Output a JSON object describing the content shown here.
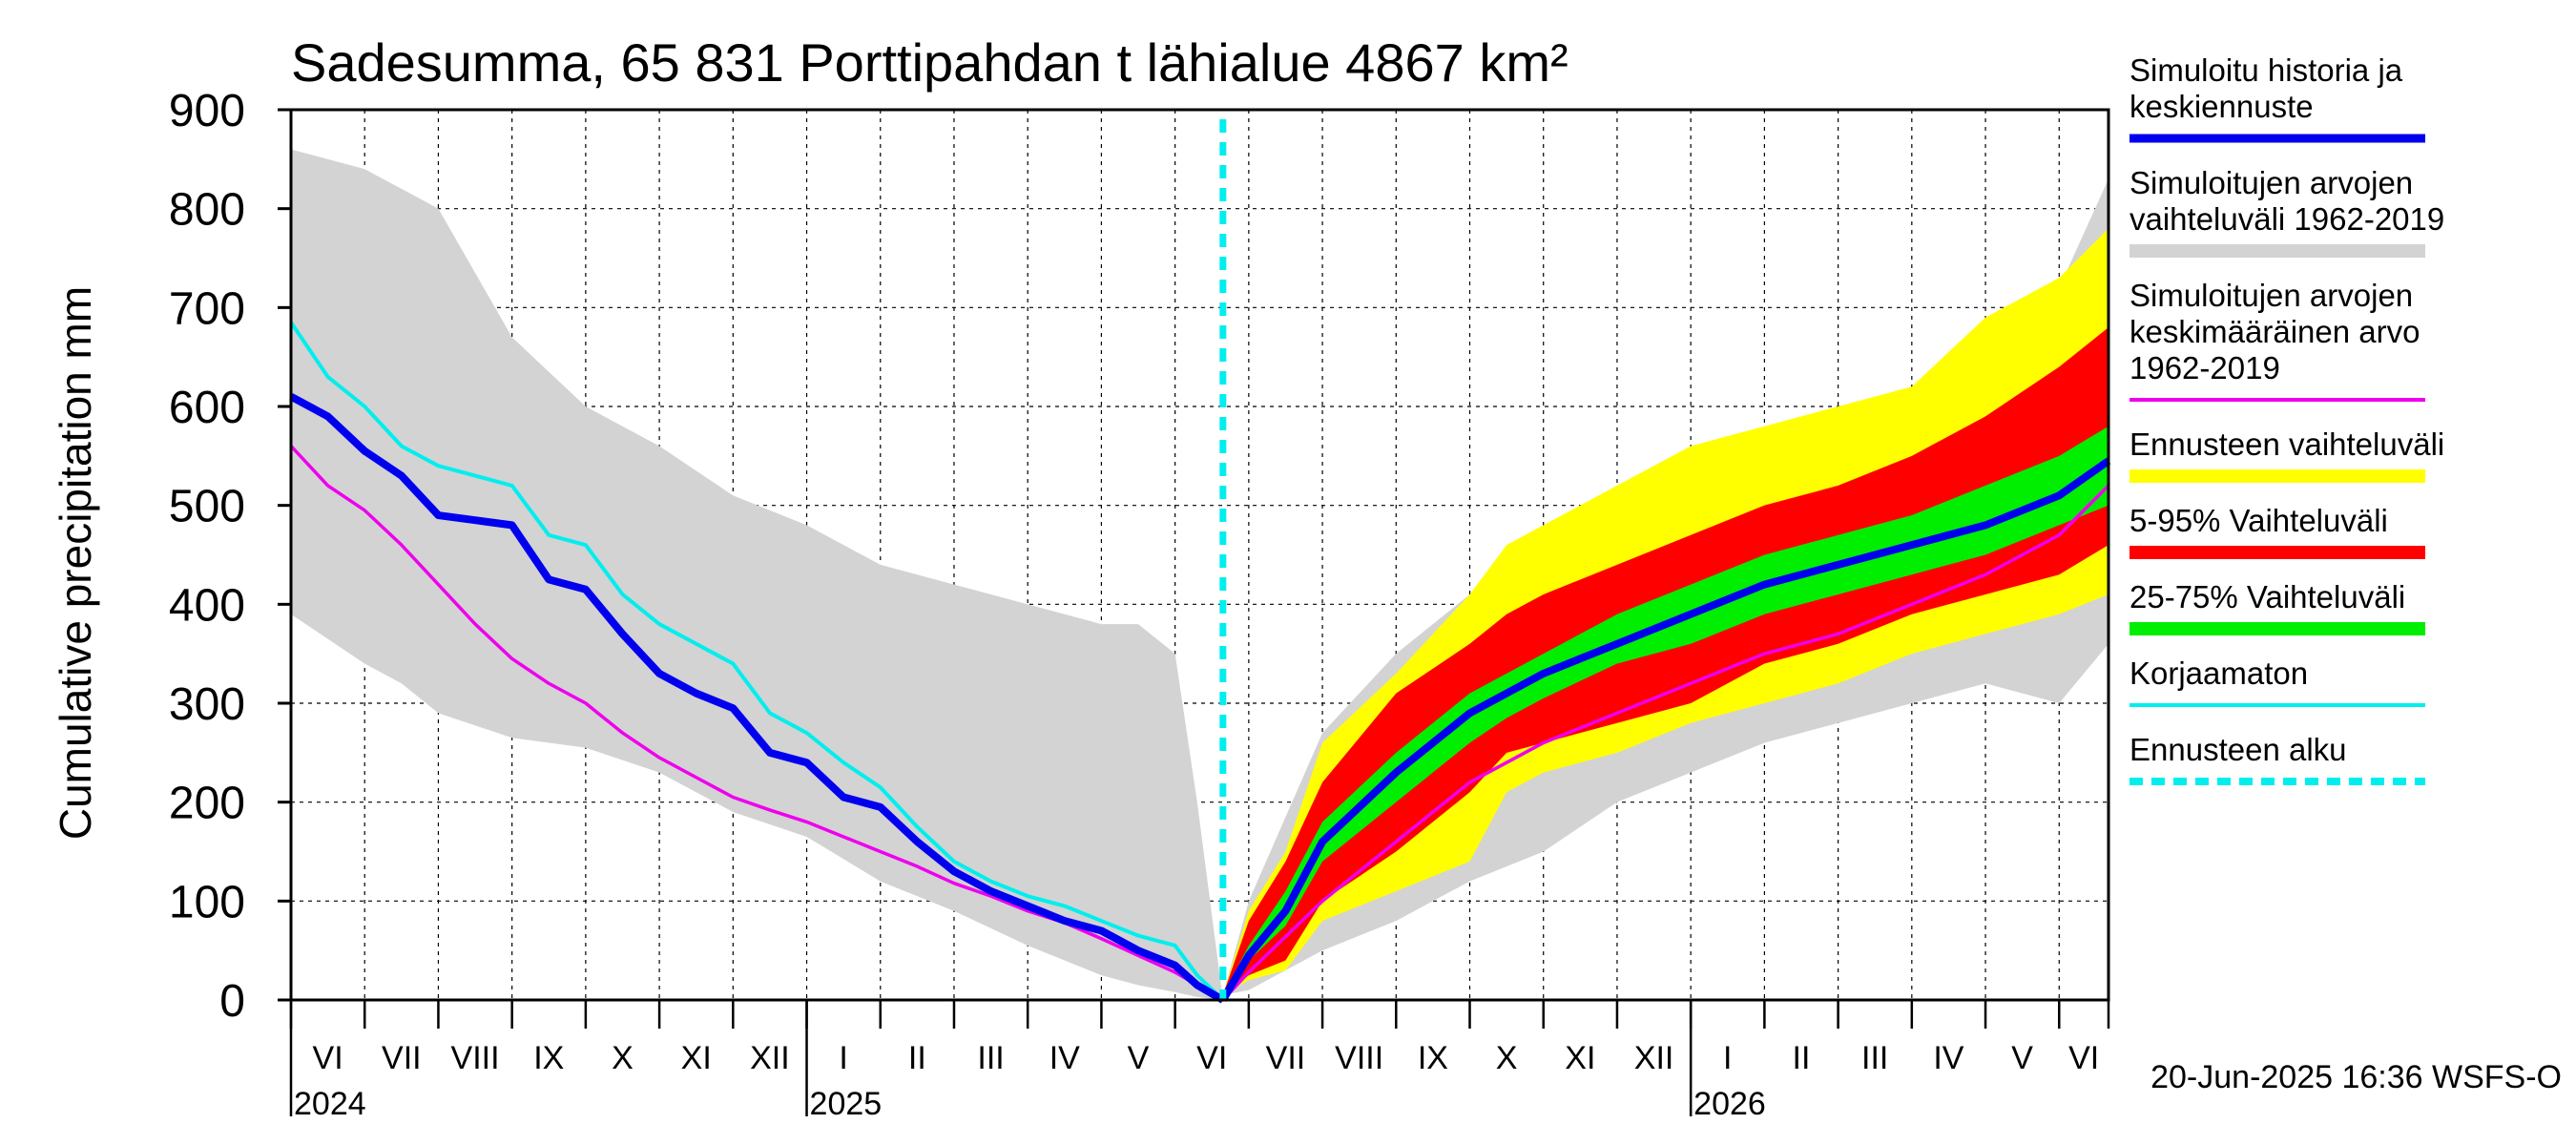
{
  "chart_data": {
    "type": "area",
    "title": "Sadesumma, 65 831 Porttipahdan t lähialue 4867 km²",
    "ylabel": "Cumulative precipitation   mm",
    "xlabel": "",
    "ylim": [
      0,
      900
    ],
    "yticks": [
      0,
      100,
      200,
      300,
      400,
      500,
      600,
      700,
      800,
      900
    ],
    "grid": true,
    "legend_position": "right",
    "x_unit": "months since start of June 2024",
    "xlim": [
      0,
      24.67
    ],
    "forecast_start": 12.65,
    "months": [
      "VI",
      "VII",
      "VIII",
      "IX",
      "X",
      "XI",
      "XII",
      "I",
      "II",
      "III",
      "IV",
      "V",
      "VI",
      "VII",
      "VIII",
      "IX",
      "X",
      "XI",
      "XII",
      "I",
      "II",
      "III",
      "IV",
      "V",
      "VI"
    ],
    "years": [
      {
        "label": "2024",
        "x": 0
      },
      {
        "label": "2025",
        "x": 7
      },
      {
        "label": "2026",
        "x": 19
      }
    ],
    "footer": "20-Jun-2025 16:36 WSFS-O",
    "colors": {
      "history": "#0000ee",
      "range": "#d3d3d3",
      "mean": "#ee00ee",
      "forecast_range": "#ffff00",
      "p5_95": "#ff0000",
      "p25_75": "#00ee00",
      "uncorrected": "#00eeee",
      "forecast_start": "#00eeee"
    },
    "legend": [
      {
        "label": "Simuloitu historia ja keskiennuste",
        "lines": [
          "Simuloitu historia ja",
          "keskiennuste"
        ],
        "color": "#0000ee",
        "style": "thick"
      },
      {
        "label": "Simuloitujen arvojen vaihteluväli 1962-2019",
        "lines": [
          "Simuloitujen arvojen",
          "vaihteluväli 1962-2019"
        ],
        "color": "#d3d3d3",
        "style": "band"
      },
      {
        "label": "Simuloitujen arvojen keskimääräinen arvo 1962-2019",
        "lines": [
          "Simuloitujen arvojen",
          "keskimääräinen arvo",
          "   1962-2019"
        ],
        "color": "#ee00ee",
        "style": "thin"
      },
      {
        "label": "Ennusteen vaihteluväli",
        "lines": [
          "Ennusteen vaihteluväli"
        ],
        "color": "#ffff00",
        "style": "band"
      },
      {
        "label": "5-95% Vaihteluväli",
        "lines": [
          "5-95% Vaihteluväli"
        ],
        "color": "#ff0000",
        "style": "band"
      },
      {
        "label": "25-75% Vaihteluväli",
        "lines": [
          "25-75% Vaihteluväli"
        ],
        "color": "#00ee00",
        "style": "band"
      },
      {
        "label": "Korjaamaton",
        "lines": [
          "Korjaamaton"
        ],
        "color": "#00eeee",
        "style": "thin"
      },
      {
        "label": "Ennusteen alku",
        "lines": [
          "Ennusteen alku"
        ],
        "color": "#00eeee",
        "style": "dashed"
      }
    ],
    "series": {
      "history_range": {
        "x": [
          0,
          1,
          1.5,
          2,
          3,
          4,
          5,
          6,
          7,
          8,
          9,
          10,
          11,
          11.5,
          12,
          12.3,
          12.65
        ],
        "upper": [
          860,
          840,
          820,
          800,
          670,
          600,
          560,
          510,
          480,
          440,
          420,
          400,
          380,
          380,
          350,
          200,
          0
        ],
        "lower": [
          390,
          340,
          320,
          290,
          265,
          255,
          230,
          190,
          165,
          120,
          90,
          55,
          25,
          15,
          8,
          3,
          0
        ]
      },
      "history": {
        "name": "Simuloitu historia ja keskiennuste",
        "x": [
          0,
          0.5,
          1,
          1.5,
          2,
          2.5,
          3,
          3.5,
          4,
          4.5,
          5,
          5.5,
          6,
          6.5,
          7,
          7.5,
          8,
          8.5,
          9,
          9.5,
          10,
          10.5,
          11,
          11.5,
          12,
          12.3,
          12.65
        ],
        "y": [
          610,
          590,
          555,
          530,
          490,
          485,
          480,
          425,
          415,
          370,
          330,
          310,
          295,
          250,
          240,
          205,
          195,
          160,
          130,
          110,
          95,
          80,
          70,
          50,
          35,
          15,
          0
        ]
      },
      "uncorrected": {
        "name": "Korjaamaton",
        "x": [
          0,
          0.5,
          1,
          1.5,
          2,
          2.5,
          3,
          3.5,
          4,
          4.5,
          5,
          5.5,
          6,
          6.5,
          7,
          7.5,
          8,
          8.5,
          9,
          9.5,
          10,
          10.5,
          11,
          11.5,
          12,
          12.3,
          12.65
        ],
        "y": [
          685,
          630,
          600,
          560,
          540,
          530,
          520,
          470,
          460,
          410,
          380,
          360,
          340,
          290,
          270,
          240,
          215,
          175,
          140,
          120,
          105,
          95,
          80,
          65,
          55,
          25,
          0
        ]
      },
      "mean": {
        "name": "Simuloitujen arvojen keskimääräinen arvo 1962-2019",
        "x": [
          0,
          0.5,
          1,
          1.5,
          2,
          2.5,
          3,
          3.5,
          4,
          4.5,
          5,
          5.5,
          6,
          6.5,
          7,
          7.5,
          8,
          8.5,
          9,
          9.5,
          10,
          10.5,
          11,
          11.5,
          12,
          12.65,
          13,
          14,
          15,
          16,
          17,
          18,
          19,
          20,
          21,
          22,
          23,
          24,
          24.67
        ],
        "y": [
          560,
          520,
          495,
          460,
          420,
          380,
          345,
          320,
          300,
          270,
          245,
          225,
          205,
          192,
          180,
          165,
          150,
          135,
          118,
          105,
          90,
          78,
          62,
          45,
          28,
          0,
          28,
          100,
          160,
          220,
          260,
          290,
          320,
          350,
          370,
          400,
          430,
          470,
          520
        ]
      },
      "forecast": {
        "x": [
          12.65,
          13,
          13.5,
          14,
          15,
          16,
          16.5,
          17,
          18,
          19,
          20,
          21,
          22,
          23,
          24,
          24.67
        ],
        "ymax": [
          5,
          90,
          150,
          260,
          330,
          410,
          460,
          480,
          520,
          560,
          580,
          600,
          620,
          690,
          730,
          780
        ],
        "p95": [
          5,
          80,
          140,
          220,
          310,
          360,
          390,
          410,
          440,
          470,
          500,
          520,
          550,
          590,
          640,
          680
        ],
        "p75": [
          5,
          55,
          110,
          180,
          250,
          310,
          330,
          350,
          390,
          420,
          450,
          470,
          490,
          520,
          550,
          580
        ],
        "median": [
          0,
          45,
          90,
          160,
          230,
          290,
          310,
          330,
          360,
          390,
          420,
          440,
          460,
          480,
          510,
          545
        ],
        "p25": [
          5,
          40,
          75,
          140,
          200,
          260,
          285,
          305,
          340,
          360,
          390,
          410,
          430,
          450,
          480,
          500
        ],
        "p5": [
          5,
          25,
          40,
          100,
          150,
          210,
          250,
          260,
          280,
          300,
          340,
          360,
          390,
          410,
          430,
          460
        ],
        "ymin": [
          5,
          20,
          30,
          80,
          110,
          140,
          210,
          230,
          250,
          280,
          300,
          320,
          350,
          370,
          390,
          410
        ]
      },
      "forecast_range_gray": {
        "x": [
          12.65,
          13,
          14,
          15,
          16,
          17,
          18,
          19,
          20,
          21,
          22,
          23,
          24,
          24.67
        ],
        "upper": [
          5,
          100,
          270,
          350,
          410,
          470,
          520,
          530,
          570,
          590,
          610,
          660,
          720,
          830
        ],
        "lower": [
          5,
          10,
          50,
          80,
          120,
          150,
          200,
          230,
          260,
          280,
          300,
          320,
          300,
          360
        ]
      }
    }
  }
}
